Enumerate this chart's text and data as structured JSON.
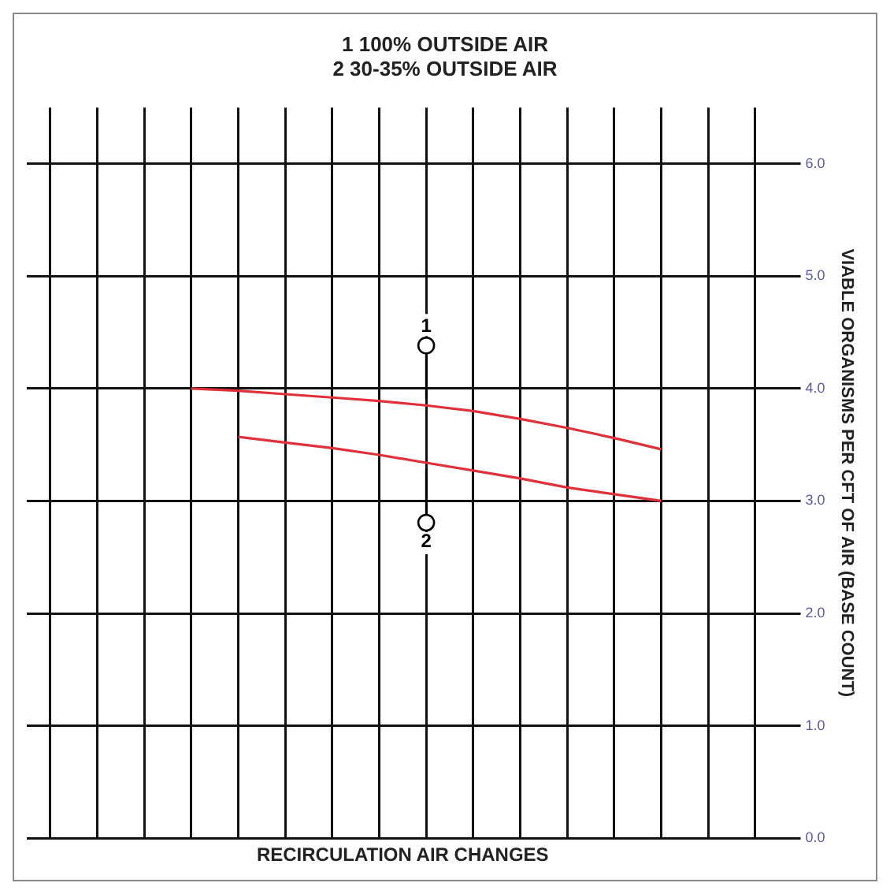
{
  "chart_data": {
    "type": "line",
    "title": "1 100% OUTSIDE AIR\n2 30-35% OUTSIDE AIR",
    "xlabel": "RECIRCULATION AIR CHANGES",
    "ylabel": "VIABLE ORGANISMS PER CFT OF AIR (BASE COUNT)",
    "categories": [
      null,
      null,
      null,
      null,
      null,
      null,
      null,
      null,
      null,
      null,
      null,
      null,
      null,
      null,
      null,
      null
    ],
    "series": [
      {
        "name": "1",
        "color": "#e0303a",
        "values": [
          null,
          null,
          null,
          4.0,
          3.98,
          3.95,
          3.92,
          3.89,
          3.85,
          3.8,
          3.73,
          3.65,
          3.56,
          3.46,
          null,
          null
        ]
      },
      {
        "name": "2",
        "color": "#e0303a",
        "values": [
          null,
          null,
          null,
          null,
          3.57,
          3.52,
          3.47,
          3.41,
          3.34,
          3.27,
          3.2,
          3.12,
          3.06,
          3.0,
          null,
          null
        ]
      }
    ],
    "ylim": [
      0,
      6.5
    ],
    "yticks": [
      {
        "value": 0,
        "label": "0.0"
      },
      {
        "value": 1,
        "label": "1.0"
      },
      {
        "value": 2,
        "label": "2.0"
      },
      {
        "value": 3,
        "label": "3.0"
      },
      {
        "value": 4,
        "label": "4.0"
      },
      {
        "value": 5,
        "label": "5.0"
      },
      {
        "value": 6,
        "label": "6.0"
      }
    ],
    "tick_labels": "y",
    "grid": true,
    "legend": false,
    "marker": "none",
    "line_style": "solid"
  }
}
